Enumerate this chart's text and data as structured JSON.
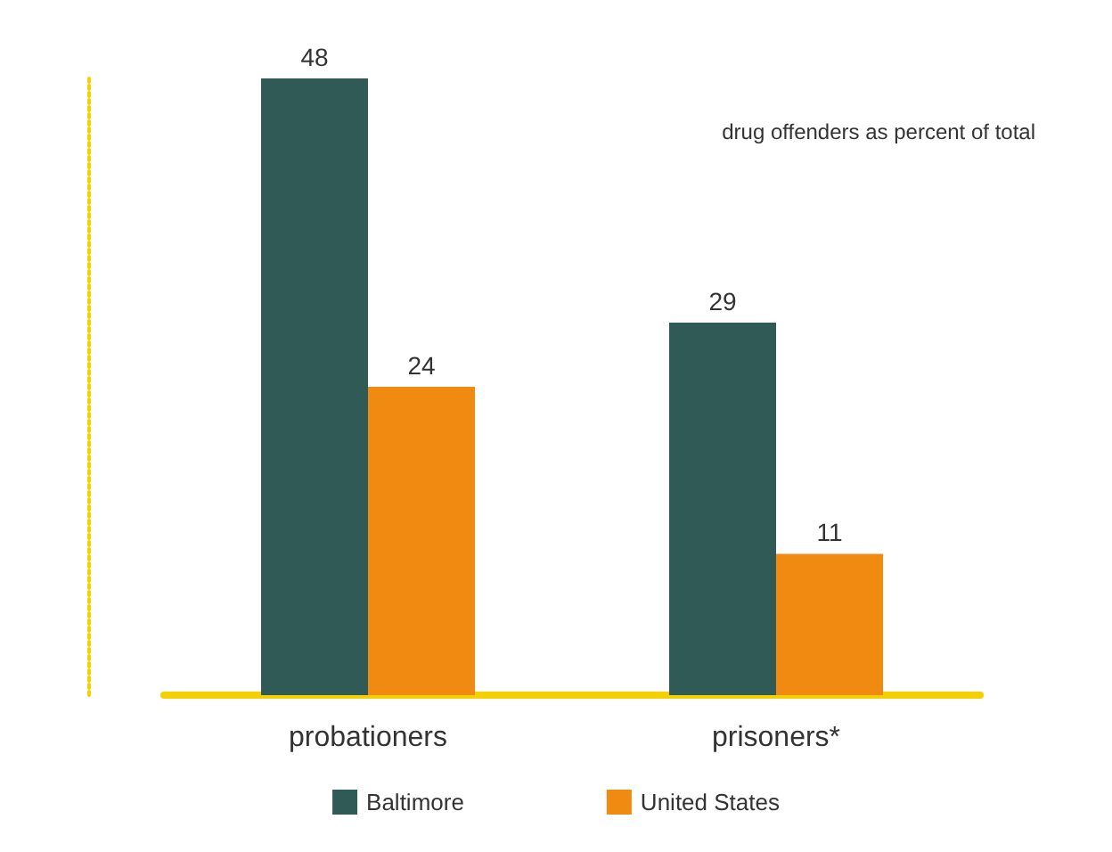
{
  "chart_data": {
    "type": "bar",
    "title": "drug offenders as percent of total",
    "categories": [
      "probationers",
      "prisoners*"
    ],
    "series": [
      {
        "name": "Baltimore",
        "color": "#2f5a55",
        "values": [
          48,
          29
        ]
      },
      {
        "name": "United States",
        "color": "#f08a10",
        "values": [
          24,
          11
        ]
      }
    ],
    "data_labels": true,
    "legend": "bottom",
    "grid": false
  }
}
